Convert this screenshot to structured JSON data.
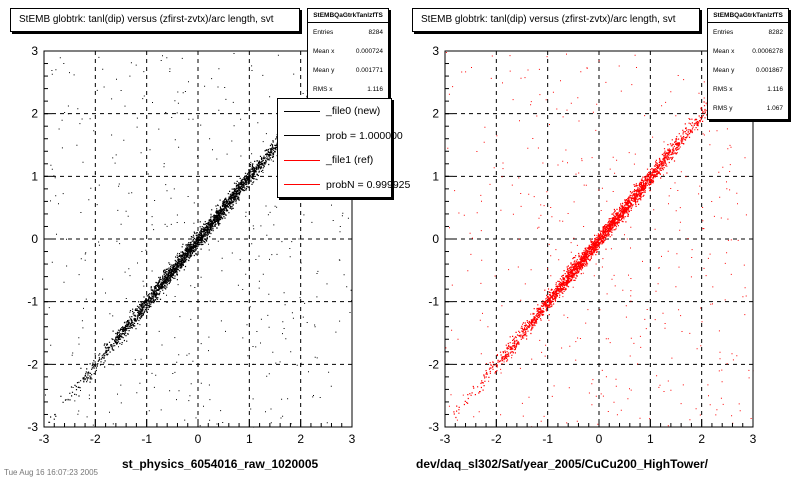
{
  "panels": [
    {
      "title": "StEMB globtrk: tanl(dip) versus (zfirst-zvtx)/arc length, svt",
      "stats": {
        "name": "StEMBQaGtrkTanlzfTS",
        "rows": [
          {
            "label": "Entries",
            "value": "8284"
          },
          {
            "label": "Mean x",
            "value": "0.000724"
          },
          {
            "label": "Mean y",
            "value": "0.001771"
          },
          {
            "label": "RMS x",
            "value": "1.116"
          }
        ]
      },
      "legend": [
        {
          "label": "_file0 (new)",
          "color": "#000000"
        },
        {
          "label": "prob = 1.000000",
          "color": "#000000"
        },
        {
          "label": "_file1 (ref)",
          "color": "#ff0000"
        },
        {
          "label": "probN = 0.999925",
          "color": "#ff0000"
        }
      ],
      "xtitle": "st_physics_6054016_raw_1020005"
    },
    {
      "title": "StEMB globtrk: tanl(dip) versus (zfirst-zvtx)/arc length, svt",
      "stats": {
        "name": "StEMBQaGtrkTanlzfTS",
        "rows": [
          {
            "label": "Entries",
            "value": "8282"
          },
          {
            "label": "Mean x",
            "value": "0.0006278"
          },
          {
            "label": "Mean y",
            "value": "0.001867"
          },
          {
            "label": "RMS x",
            "value": "1.116"
          },
          {
            "label": "RMS y",
            "value": "1.067"
          }
        ]
      },
      "xtitle": "dev/daq_sl302/Sat/year_2005/CuCu200_HighTower/"
    }
  ],
  "footer": "Tue Aug 16 16:07:23 2005",
  "chart_data": [
    {
      "type": "scatter",
      "x_ticks": [
        -3,
        -2,
        -1,
        0,
        1,
        2,
        3
      ],
      "y_ticks": [
        -3,
        -2,
        -1,
        0,
        1,
        2,
        3
      ],
      "xlim": [
        -3,
        3
      ],
      "ylim": [
        -3,
        3
      ],
      "grid": true,
      "series": [
        {
          "color": "#000000",
          "entries": 8284,
          "mean_x": 0.000724,
          "mean_y": 0.001771,
          "rms_x": 1.116,
          "trend": {
            "slope": 1.0,
            "intercept": 0.0
          }
        }
      ]
    },
    {
      "type": "scatter",
      "x_ticks": [
        -3,
        -2,
        -1,
        0,
        1,
        2,
        3
      ],
      "y_ticks": [
        -3,
        -2,
        -1,
        0,
        1,
        2,
        3
      ],
      "xlim": [
        -3,
        3
      ],
      "ylim": [
        -3,
        3
      ],
      "grid": true,
      "series": [
        {
          "color": "#ff0000",
          "entries": 8282,
          "mean_x": 0.0006278,
          "mean_y": 0.001867,
          "rms_x": 1.116,
          "rms_y": 1.067,
          "trend": {
            "slope": 1.0,
            "intercept": 0.0
          }
        }
      ]
    }
  ]
}
